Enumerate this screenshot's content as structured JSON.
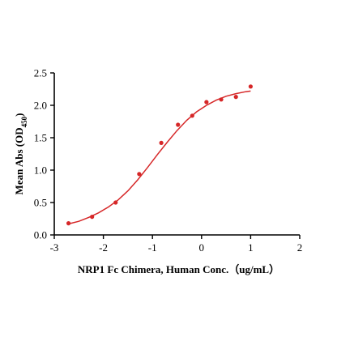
{
  "chart_data": {
    "type": "scatter",
    "title": "",
    "xlabel": "NRP1 Fc Chimera, Human Conc.（ug/mL）",
    "ylabel_main": "Mean Abs (OD",
    "ylabel_sub": "450",
    "ylabel_close": ")",
    "xlim": [
      -3,
      2
    ],
    "ylim": [
      0,
      2.5
    ],
    "x_ticks": [
      -3,
      -2,
      -1,
      0,
      1,
      2
    ],
    "y_ticks": [
      0.0,
      0.5,
      1.0,
      1.5,
      2.0,
      2.5
    ],
    "x_tick_labels": [
      "-3",
      "-2",
      "-1",
      "0",
      "1",
      "2"
    ],
    "y_tick_labels": [
      "0.0",
      "0.5",
      "1.0",
      "1.5",
      "2.0",
      "2.5"
    ],
    "grid": false,
    "color": "#d62728",
    "series": [
      {
        "points": [
          {
            "x": -2.71,
            "y": 0.18
          },
          {
            "x": -2.23,
            "y": 0.28
          },
          {
            "x": -1.75,
            "y": 0.5
          },
          {
            "x": -1.27,
            "y": 0.94
          },
          {
            "x": -0.82,
            "y": 1.42
          },
          {
            "x": -0.48,
            "y": 1.7
          },
          {
            "x": -0.19,
            "y": 1.84
          },
          {
            "x": 0.1,
            "y": 2.05
          },
          {
            "x": 0.4,
            "y": 2.09
          },
          {
            "x": 0.7,
            "y": 2.13
          },
          {
            "x": 1.0,
            "y": 2.29
          }
        ],
        "fit_curve": [
          {
            "x": -2.71,
            "y": 0.17
          },
          {
            "x": -2.5,
            "y": 0.21
          },
          {
            "x": -2.3,
            "y": 0.27
          },
          {
            "x": -2.1,
            "y": 0.34
          },
          {
            "x": -1.9,
            "y": 0.43
          },
          {
            "x": -1.7,
            "y": 0.54
          },
          {
            "x": -1.5,
            "y": 0.68
          },
          {
            "x": -1.3,
            "y": 0.85
          },
          {
            "x": -1.1,
            "y": 1.04
          },
          {
            "x": -0.9,
            "y": 1.24
          },
          {
            "x": -0.7,
            "y": 1.43
          },
          {
            "x": -0.5,
            "y": 1.61
          },
          {
            "x": -0.3,
            "y": 1.77
          },
          {
            "x": -0.1,
            "y": 1.9
          },
          {
            "x": 0.1,
            "y": 2.0
          },
          {
            "x": 0.3,
            "y": 2.08
          },
          {
            "x": 0.5,
            "y": 2.14
          },
          {
            "x": 0.7,
            "y": 2.18
          },
          {
            "x": 0.9,
            "y": 2.21
          },
          {
            "x": 1.0,
            "y": 2.22
          }
        ]
      }
    ]
  }
}
